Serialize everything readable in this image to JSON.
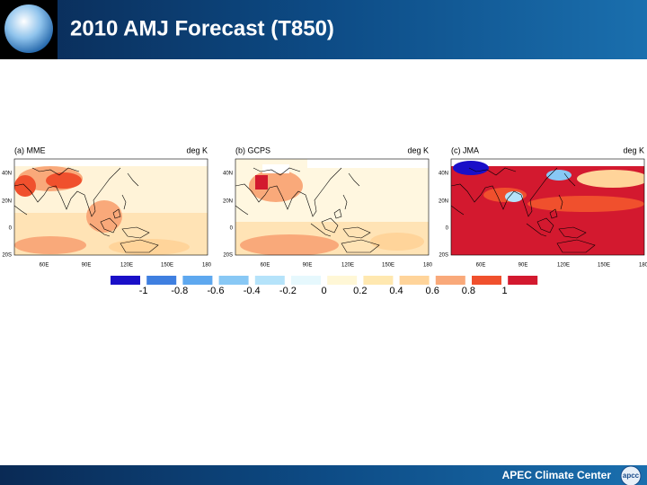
{
  "header": {
    "title": "2010 AMJ Forecast (T850)"
  },
  "panels": [
    {
      "title": "(a) MME",
      "unit": "deg K"
    },
    {
      "title": "(b) GCPS",
      "unit": "deg K"
    },
    {
      "title": "(c) JMA",
      "unit": "deg K"
    }
  ],
  "lat_labels": [
    "40N",
    "20N",
    "0",
    "20S"
  ],
  "lon_labels": [
    "60E",
    "90E",
    "120E",
    "150E",
    "180"
  ],
  "colorbar": {
    "labels": [
      "-1",
      "-0.8",
      "-0.6",
      "-0.4",
      "-0.2",
      "0",
      "0.2",
      "0.4",
      "0.6",
      "0.8",
      "1"
    ],
    "colors": [
      "#1a0fc8",
      "#3f7fe0",
      "#5ea8ef",
      "#88c8f5",
      "#b5e3fa",
      "#e6f8fd",
      "#fff7d6",
      "#ffe8b0",
      "#ffd49a",
      "#f9a97a",
      "#f0502d",
      "#d3192f"
    ]
  },
  "footer": {
    "text": "APEC Climate Center",
    "logo": "apcc"
  }
}
